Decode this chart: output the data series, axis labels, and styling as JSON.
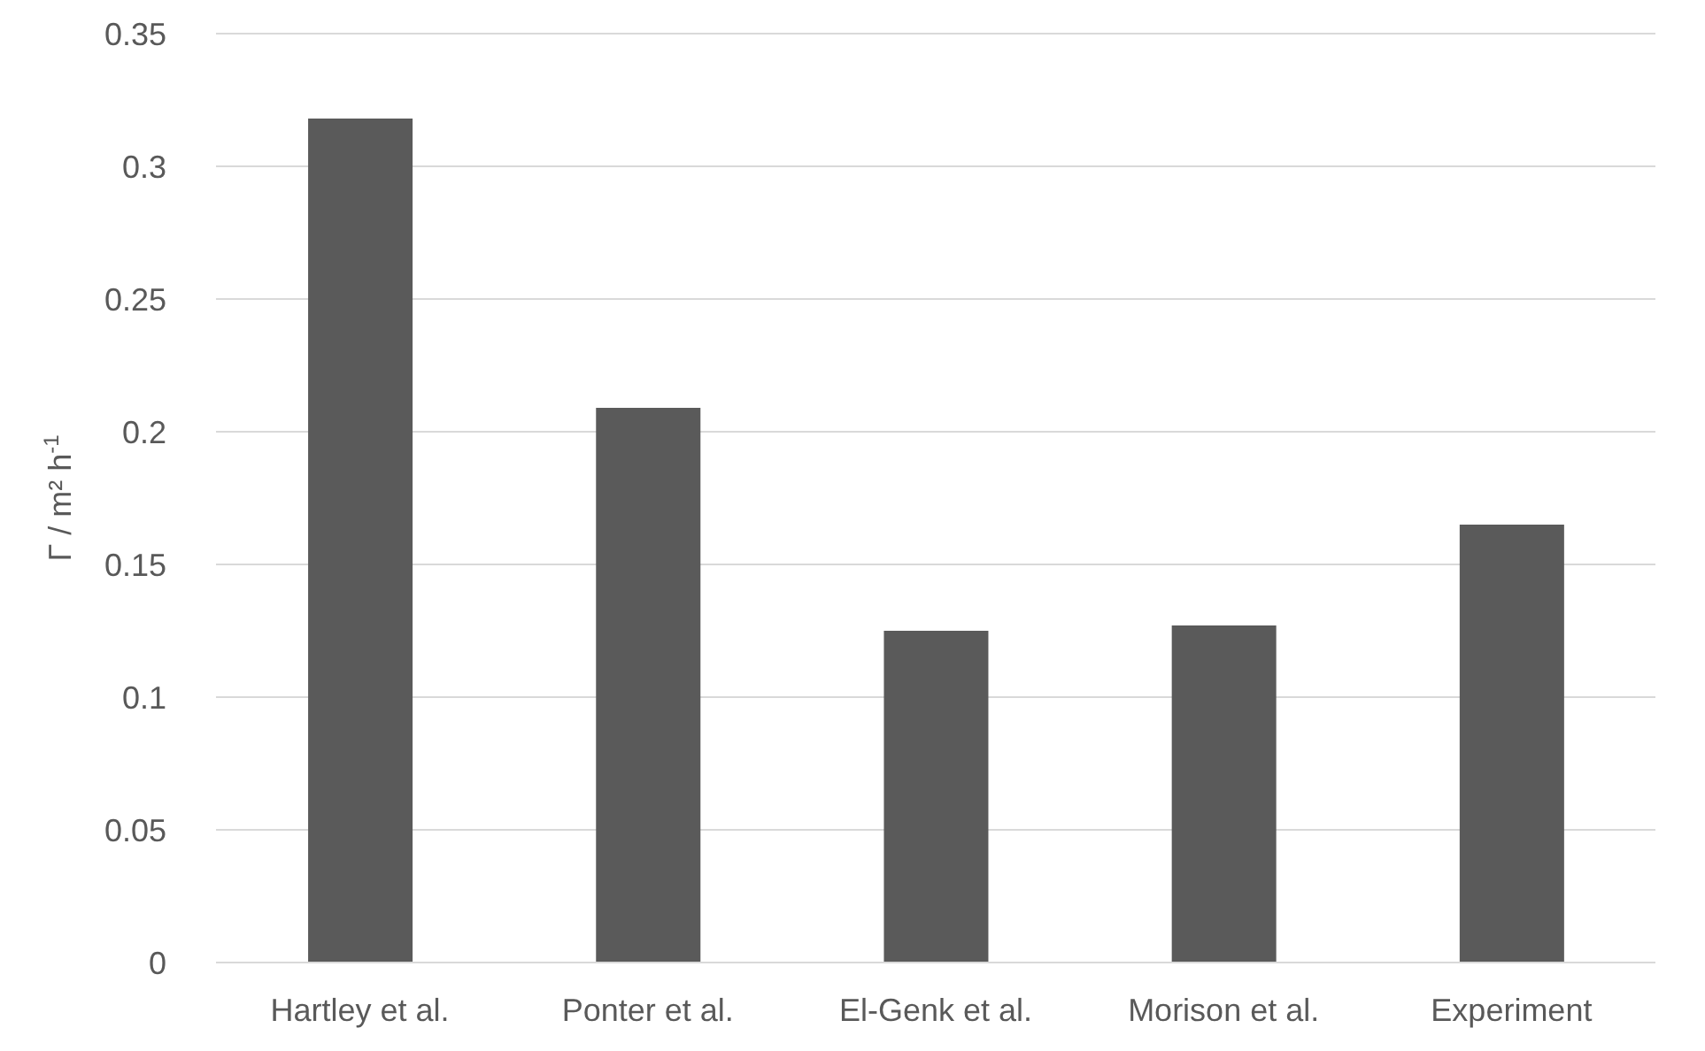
{
  "chart_data": {
    "type": "bar",
    "ylabel": "Γ / m² h$^{-1}$",
    "categories": [
      "Hartley et al.",
      "Ponter et al.",
      "El-Genk et al.",
      "Morison et al.",
      "Experiment"
    ],
    "values": [
      0.318,
      0.209,
      0.125,
      0.127,
      0.165
    ],
    "color": "#5a5a5a",
    "ylim": [
      0,
      0.35
    ],
    "yticks": [
      0,
      0.05,
      0.1,
      0.15,
      0.2,
      0.25,
      0.3,
      0.35
    ],
    "grid": "y",
    "legend": false
  }
}
